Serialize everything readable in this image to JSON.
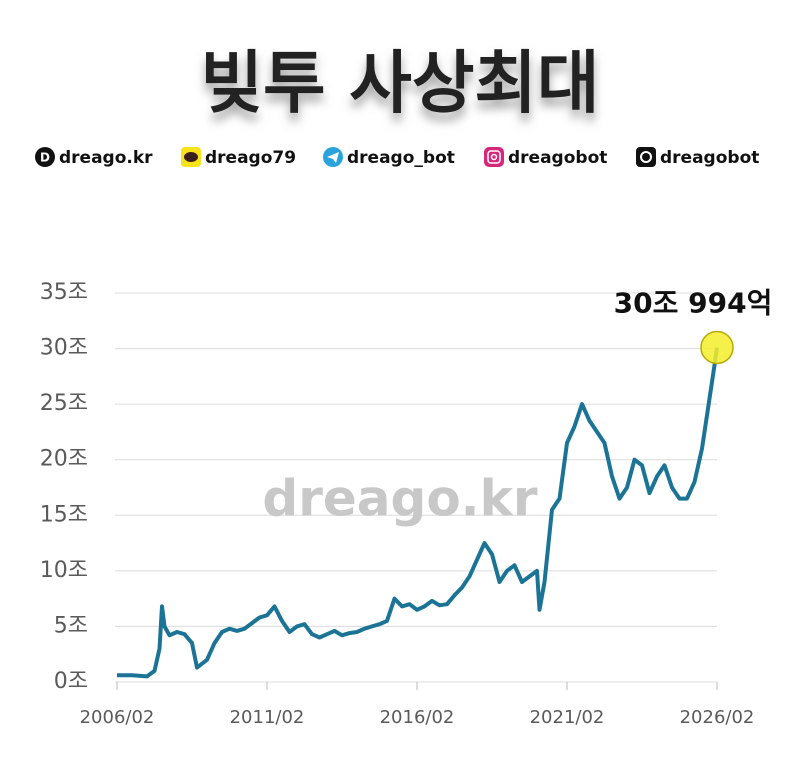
{
  "header": {
    "title": "빚투 사상최대",
    "links": [
      "dreago.kr",
      "dreago79",
      "dreago_bot",
      "dreagobot",
      "dreagobot"
    ]
  },
  "watermark": "dreago.kr",
  "chart_data": {
    "type": "line",
    "color": "#1b7496",
    "annotation": "30조 994억",
    "grid": true,
    "x": [
      "2006/02",
      "2006/08",
      "2007/02",
      "2007/05",
      "2007/07",
      "2007/08",
      "2007/09",
      "2007/11",
      "2008/02",
      "2008/05",
      "2008/08",
      "2008/10",
      "2009/02",
      "2009/05",
      "2009/08",
      "2009/11",
      "2010/02",
      "2010/05",
      "2010/08",
      "2010/11",
      "2011/02",
      "2011/05",
      "2011/08",
      "2011/11",
      "2012/02",
      "2012/05",
      "2012/08",
      "2012/11",
      "2013/02",
      "2013/05",
      "2013/08",
      "2013/11",
      "2014/02",
      "2014/05",
      "2014/08",
      "2014/11",
      "2015/02",
      "2015/05",
      "2015/08",
      "2015/11",
      "2016/02",
      "2016/05",
      "2016/08",
      "2016/11",
      "2017/02",
      "2017/05",
      "2017/08",
      "2017/11",
      "2018/02",
      "2018/05",
      "2018/08",
      "2018/11",
      "2019/02",
      "2019/05",
      "2019/08",
      "2019/11",
      "2020/02",
      "2020/03",
      "2020/05",
      "2020/08",
      "2020/11",
      "2021/02",
      "2021/05",
      "2021/08",
      "2021/11",
      "2022/02",
      "2022/05",
      "2022/08",
      "2022/11",
      "2023/02",
      "2023/05",
      "2023/08",
      "2023/11",
      "2024/02",
      "2024/05",
      "2024/08",
      "2024/11",
      "2025/02",
      "2025/05",
      "2025/08",
      "2025/11",
      "2026/01",
      "2026/02"
    ],
    "values": [
      0.6,
      0.6,
      0.5,
      1.0,
      3.0,
      6.8,
      5.0,
      4.2,
      4.5,
      4.3,
      3.5,
      1.3,
      2.0,
      3.5,
      4.5,
      4.8,
      4.6,
      4.8,
      5.3,
      5.8,
      6.0,
      6.8,
      5.5,
      4.5,
      5.0,
      5.2,
      4.3,
      4.0,
      4.3,
      4.6,
      4.2,
      4.4,
      4.5,
      4.8,
      5.0,
      5.2,
      5.5,
      7.5,
      6.8,
      7.0,
      6.5,
      6.8,
      7.3,
      6.9,
      7.0,
      7.8,
      8.5,
      9.5,
      11.0,
      12.5,
      11.5,
      9.0,
      10.0,
      10.5,
      9.0,
      9.5,
      10.0,
      6.5,
      9.0,
      15.5,
      16.5,
      21.5,
      23.0,
      25.0,
      23.5,
      22.5,
      21.5,
      18.5,
      16.5,
      17.5,
      20.0,
      19.5,
      17.0,
      18.5,
      19.5,
      17.5,
      16.5,
      16.5,
      18.0,
      21.0,
      25.5,
      28.5,
      30.0994
    ],
    "xlim": [
      "2006/02",
      "2026/02"
    ],
    "xticks": [
      "2006/02",
      "2011/02",
      "2016/02",
      "2021/02",
      "2026/02"
    ],
    "ylim": [
      0,
      35
    ],
    "yticks": [
      {
        "value": 0,
        "label": "0조"
      },
      {
        "value": 5,
        "label": "5조"
      },
      {
        "value": 10,
        "label": "10조"
      },
      {
        "value": 15,
        "label": "15조"
      },
      {
        "value": 20,
        "label": "20조"
      },
      {
        "value": 25,
        "label": "25조"
      },
      {
        "value": 30,
        "label": "30조"
      },
      {
        "value": 35,
        "label": "35조"
      }
    ]
  }
}
